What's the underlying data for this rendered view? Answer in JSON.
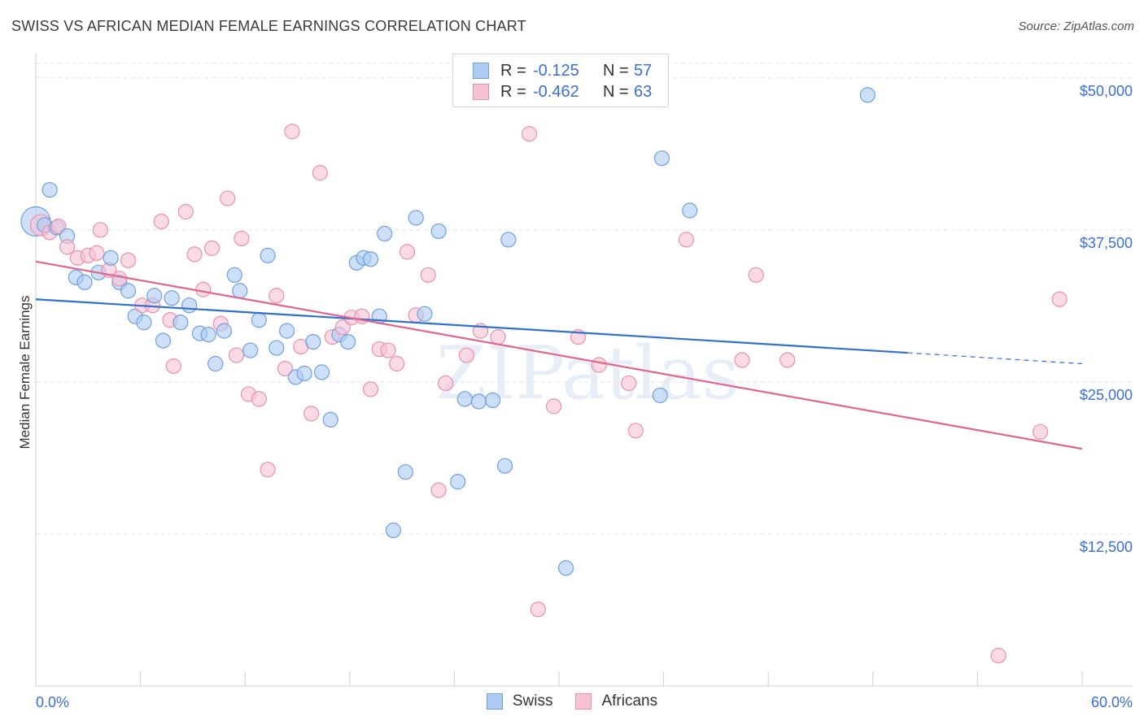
{
  "title": "SWISS VS AFRICAN MEDIAN FEMALE EARNINGS CORRELATION CHART",
  "source": "Source: ZipAtlas.com",
  "watermark": "ZIPatlas",
  "legend": {
    "swiss": {
      "r_label": "R =",
      "r_value": "-0.125",
      "n_label": "N =",
      "n_value": "57"
    },
    "africans": {
      "r_label": "R =",
      "r_value": "-0.462",
      "n_label": "N =",
      "n_value": "63"
    }
  },
  "bottom_legend": {
    "swiss": "Swiss",
    "africans": "Africans"
  },
  "colors": {
    "swiss_fill": "#aecbf2",
    "swiss_stroke": "#6f9fe0",
    "swiss_line": "#2f6fd0",
    "africans_fill": "#f7c3d4",
    "africans_stroke": "#e98fae",
    "africans_line": "#e0668f",
    "grid": "#e3e3e3",
    "axis_label": "#3b6fd6"
  },
  "chart_data": {
    "type": "scatter",
    "title": "SWISS VS AFRICAN MEDIAN FEMALE EARNINGS CORRELATION CHART",
    "xlabel": "",
    "ylabel": "Median Female Earnings",
    "xlim": [
      0,
      60
    ],
    "ylim": [
      0,
      52000
    ],
    "x_tick_labels": [
      "0.0%",
      "60.0%"
    ],
    "y_ticks": [
      12500,
      25000,
      37500,
      50000
    ],
    "y_tick_labels": [
      "$12,500",
      "$25,000",
      "$37,500",
      "$50,000"
    ],
    "series": [
      {
        "name": "Swiss",
        "points": [
          [
            0.0,
            38200
          ],
          [
            0.8,
            40800
          ],
          [
            1.2,
            37700
          ],
          [
            1.8,
            37000
          ],
          [
            2.3,
            33600
          ],
          [
            2.8,
            33200
          ],
          [
            3.6,
            34000
          ],
          [
            4.3,
            35200
          ],
          [
            4.8,
            33200
          ],
          [
            5.3,
            32500
          ],
          [
            5.7,
            30400
          ],
          [
            6.2,
            29900
          ],
          [
            6.8,
            32100
          ],
          [
            7.3,
            28400
          ],
          [
            7.8,
            31900
          ],
          [
            8.3,
            29900
          ],
          [
            8.8,
            31300
          ],
          [
            9.4,
            29000
          ],
          [
            9.9,
            28900
          ],
          [
            10.3,
            26500
          ],
          [
            10.8,
            29200
          ],
          [
            11.4,
            33800
          ],
          [
            11.7,
            32500
          ],
          [
            12.3,
            27600
          ],
          [
            12.8,
            30100
          ],
          [
            13.3,
            35400
          ],
          [
            13.8,
            27800
          ],
          [
            14.4,
            29200
          ],
          [
            14.9,
            25400
          ],
          [
            15.4,
            25700
          ],
          [
            15.9,
            28300
          ],
          [
            16.4,
            25800
          ],
          [
            16.9,
            21900
          ],
          [
            17.4,
            28900
          ],
          [
            17.9,
            28300
          ],
          [
            18.4,
            34800
          ],
          [
            18.8,
            35200
          ],
          [
            19.2,
            35100
          ],
          [
            19.7,
            30400
          ],
          [
            20.0,
            37200
          ],
          [
            20.5,
            12800
          ],
          [
            21.2,
            17600
          ],
          [
            21.8,
            38500
          ],
          [
            22.3,
            30600
          ],
          [
            23.1,
            37400
          ],
          [
            24.2,
            16800
          ],
          [
            24.6,
            23600
          ],
          [
            25.4,
            23400
          ],
          [
            26.2,
            23500
          ],
          [
            26.9,
            18100
          ],
          [
            27.1,
            36700
          ],
          [
            30.4,
            9700
          ],
          [
            35.8,
            23900
          ],
          [
            35.9,
            43400
          ],
          [
            37.5,
            39100
          ],
          [
            47.7,
            48600
          ],
          [
            0.5,
            37900
          ]
        ],
        "trend": {
          "x": [
            0,
            50
          ],
          "y": [
            31800,
            27400
          ]
        },
        "trend_dashed": {
          "x": [
            50,
            60
          ],
          "y": [
            27400,
            26500
          ]
        }
      },
      {
        "name": "Africans",
        "points": [
          [
            0.3,
            37900
          ],
          [
            0.8,
            37300
          ],
          [
            1.3,
            37800
          ],
          [
            1.8,
            36100
          ],
          [
            2.4,
            35200
          ],
          [
            3.0,
            35400
          ],
          [
            3.5,
            35600
          ],
          [
            3.7,
            37500
          ],
          [
            4.2,
            34200
          ],
          [
            4.8,
            33500
          ],
          [
            5.3,
            35000
          ],
          [
            6.1,
            31300
          ],
          [
            6.7,
            31300
          ],
          [
            7.2,
            38200
          ],
          [
            7.7,
            30100
          ],
          [
            7.9,
            26300
          ],
          [
            8.6,
            39000
          ],
          [
            9.1,
            35500
          ],
          [
            9.6,
            32600
          ],
          [
            10.1,
            36000
          ],
          [
            10.6,
            29800
          ],
          [
            11.0,
            40100
          ],
          [
            11.5,
            27200
          ],
          [
            11.8,
            36800
          ],
          [
            12.2,
            24000
          ],
          [
            12.8,
            23600
          ],
          [
            13.3,
            17800
          ],
          [
            13.8,
            32100
          ],
          [
            14.3,
            26100
          ],
          [
            14.7,
            45600
          ],
          [
            15.2,
            27900
          ],
          [
            15.8,
            22400
          ],
          [
            16.3,
            42200
          ],
          [
            17.0,
            28700
          ],
          [
            17.6,
            29500
          ],
          [
            18.1,
            30300
          ],
          [
            18.7,
            30400
          ],
          [
            19.2,
            24400
          ],
          [
            19.7,
            27700
          ],
          [
            20.2,
            27600
          ],
          [
            20.7,
            26500
          ],
          [
            21.3,
            35700
          ],
          [
            21.8,
            30500
          ],
          [
            22.5,
            33800
          ],
          [
            23.1,
            16100
          ],
          [
            23.5,
            24900
          ],
          [
            24.7,
            27200
          ],
          [
            25.5,
            29200
          ],
          [
            26.5,
            28700
          ],
          [
            28.3,
            45400
          ],
          [
            28.8,
            6300
          ],
          [
            29.7,
            23000
          ],
          [
            31.1,
            28700
          ],
          [
            32.3,
            26400
          ],
          [
            34.0,
            24900
          ],
          [
            34.4,
            21000
          ],
          [
            37.3,
            36700
          ],
          [
            40.5,
            26800
          ],
          [
            41.3,
            33800
          ],
          [
            43.1,
            26800
          ],
          [
            57.6,
            20900
          ],
          [
            58.7,
            31800
          ],
          [
            55.2,
            2500
          ]
        ],
        "trend": {
          "x": [
            0,
            60
          ],
          "y": [
            34900,
            19500
          ]
        }
      }
    ]
  }
}
